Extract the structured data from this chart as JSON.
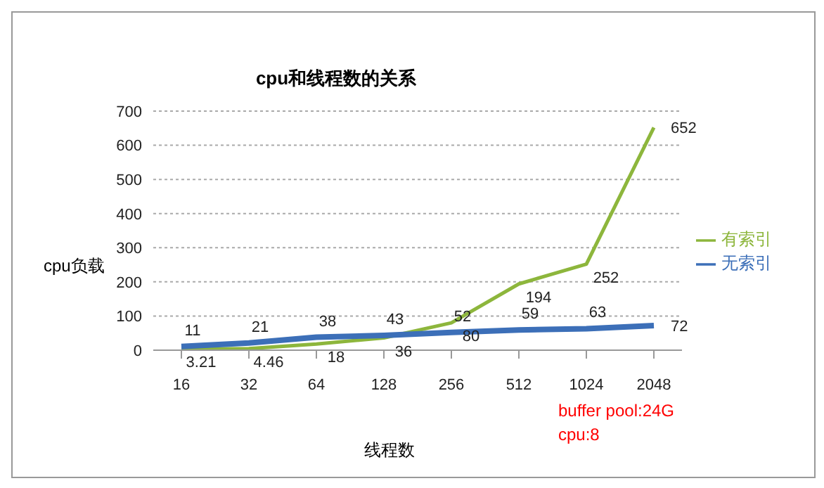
{
  "chart_data": {
    "type": "line",
    "title": "cpu和线程数的关系",
    "xlabel": "线程数",
    "ylabel": "cpu负载",
    "categories": [
      "16",
      "32",
      "64",
      "128",
      "256",
      "512",
      "1024",
      "2048"
    ],
    "series": [
      {
        "name": "有索引",
        "color": "#8db63c",
        "values": [
          3.21,
          4.46,
          18,
          36,
          80,
          194,
          252,
          652
        ]
      },
      {
        "name": "无索引",
        "color": "#3c6fb8",
        "values": [
          11,
          21,
          38,
          43,
          52,
          59,
          63,
          72
        ]
      }
    ],
    "ylim": [
      0,
      700
    ],
    "yticks": [
      0,
      100,
      200,
      300,
      400,
      500,
      600,
      700
    ],
    "grid": "y",
    "legend": "right",
    "marker": "none",
    "line_style": "solid",
    "data_labels": true,
    "annotations": [
      "buffer pool:24G",
      "cpu:8"
    ]
  }
}
